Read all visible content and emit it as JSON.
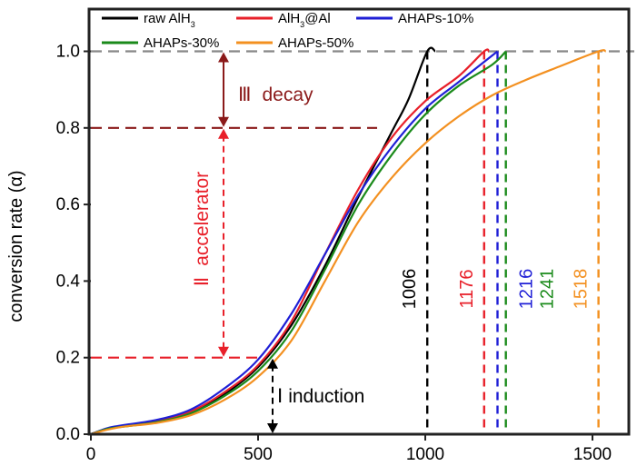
{
  "chart_data": {
    "type": "line",
    "title": "",
    "xlabel": "",
    "ylabel": "conversion rate (α)",
    "xlim": [
      0,
      1600
    ],
    "ylim": [
      0,
      1.05
    ],
    "x_ticks": [
      "0",
      "500",
      "1000",
      "1500"
    ],
    "y_ticks": [
      "0.0",
      "0.2",
      "0.4",
      "0.6",
      "0.8",
      "1.0"
    ],
    "grid": false,
    "legend_position": "top",
    "legend": [
      {
        "html": "raw AlH<tspan baseline-shift='sub' font-size='9'>3</tspan>",
        "color": "#000000"
      },
      {
        "html": "AlH<tspan baseline-shift='sub' font-size='9'>3</tspan>@Al",
        "color": "#e8202a"
      },
      {
        "html": "AHAPs-10%",
        "color": "#1f1fd6"
      },
      {
        "html": "AHAPs-30%",
        "color": "#1a8a1a"
      },
      {
        "html": "AHAPs-50%",
        "color": "#f39020"
      }
    ],
    "series": [
      {
        "name": "raw AlH3",
        "color": "#000000",
        "points": [
          [
            0,
            0
          ],
          [
            50,
            0.015
          ],
          [
            100,
            0.022
          ],
          [
            200,
            0.035
          ],
          [
            300,
            0.06
          ],
          [
            400,
            0.105
          ],
          [
            500,
            0.175
          ],
          [
            600,
            0.285
          ],
          [
            700,
            0.44
          ],
          [
            800,
            0.62
          ],
          [
            900,
            0.79
          ],
          [
            950,
            0.875
          ],
          [
            1006,
            1.0
          ],
          [
            1030,
            1.0
          ]
        ]
      },
      {
        "name": "AlH3@Al",
        "color": "#e8202a",
        "points": [
          [
            0,
            0
          ],
          [
            50,
            0.015
          ],
          [
            100,
            0.022
          ],
          [
            200,
            0.035
          ],
          [
            300,
            0.06
          ],
          [
            400,
            0.11
          ],
          [
            500,
            0.18
          ],
          [
            600,
            0.295
          ],
          [
            700,
            0.47
          ],
          [
            800,
            0.64
          ],
          [
            900,
            0.775
          ],
          [
            1000,
            0.87
          ],
          [
            1100,
            0.935
          ],
          [
            1176,
            1.0
          ],
          [
            1190,
            1.0
          ]
        ]
      },
      {
        "name": "AHAPs-10%",
        "color": "#1f1fd6",
        "points": [
          [
            0,
            0
          ],
          [
            50,
            0.016
          ],
          [
            100,
            0.024
          ],
          [
            200,
            0.038
          ],
          [
            300,
            0.065
          ],
          [
            400,
            0.12
          ],
          [
            500,
            0.195
          ],
          [
            600,
            0.315
          ],
          [
            700,
            0.47
          ],
          [
            800,
            0.625
          ],
          [
            900,
            0.75
          ],
          [
            1000,
            0.85
          ],
          [
            1100,
            0.92
          ],
          [
            1216,
            1.0
          ]
        ]
      },
      {
        "name": "AHAPs-30%",
        "color": "#1a8a1a",
        "points": [
          [
            0,
            0
          ],
          [
            50,
            0.014
          ],
          [
            100,
            0.02
          ],
          [
            200,
            0.032
          ],
          [
            300,
            0.055
          ],
          [
            400,
            0.1
          ],
          [
            500,
            0.165
          ],
          [
            600,
            0.27
          ],
          [
            700,
            0.43
          ],
          [
            800,
            0.6
          ],
          [
            900,
            0.73
          ],
          [
            1000,
            0.835
          ],
          [
            1100,
            0.91
          ],
          [
            1200,
            0.965
          ],
          [
            1241,
            1.0
          ]
        ]
      },
      {
        "name": "AHAPs-50%",
        "color": "#f39020",
        "points": [
          [
            0,
            0
          ],
          [
            50,
            0.012
          ],
          [
            100,
            0.02
          ],
          [
            200,
            0.03
          ],
          [
            300,
            0.05
          ],
          [
            400,
            0.09
          ],
          [
            500,
            0.15
          ],
          [
            600,
            0.245
          ],
          [
            700,
            0.4
          ],
          [
            800,
            0.555
          ],
          [
            900,
            0.67
          ],
          [
            1000,
            0.76
          ],
          [
            1100,
            0.83
          ],
          [
            1200,
            0.885
          ],
          [
            1300,
            0.925
          ],
          [
            1400,
            0.96
          ],
          [
            1518,
            1.0
          ],
          [
            1540,
            1.0
          ]
        ]
      }
    ],
    "markers": [
      {
        "label": "1006",
        "x": 1006,
        "color": "#000000"
      },
      {
        "label": "1176",
        "x": 1176,
        "color": "#e8202a"
      },
      {
        "label": "1216",
        "x": 1216,
        "color": "#1f1fd6"
      },
      {
        "label": "1241",
        "x": 1241,
        "color": "#1a8a1a"
      },
      {
        "label": "1518",
        "x": 1518,
        "color": "#f39020"
      }
    ],
    "thresholds": [
      {
        "y": 1.0,
        "color": "#888888"
      },
      {
        "y": 0.8,
        "color": "#8b1a1a"
      },
      {
        "y": 0.2,
        "color": "#e8202a"
      }
    ],
    "stages": [
      {
        "numeral": "Ⅲ",
        "name": "decay",
        "color": "#8b1a1a"
      },
      {
        "numeral": "Ⅱ",
        "name": "accelerator",
        "color": "#e8202a"
      },
      {
        "numeral": "Ⅰ",
        "name": "induction",
        "color": "#000000"
      }
    ]
  }
}
